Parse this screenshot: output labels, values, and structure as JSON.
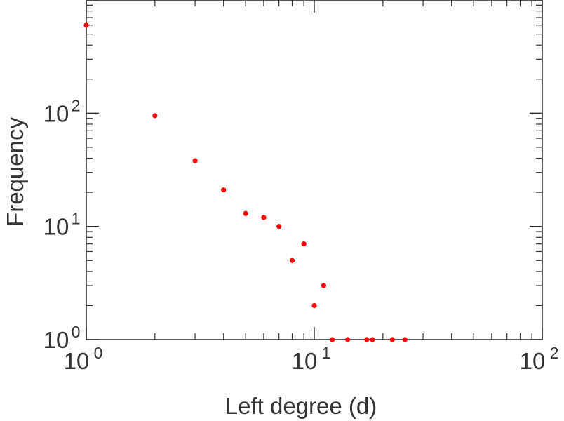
{
  "chart_data": {
    "type": "scatter",
    "title": "",
    "xlabel": "Left degree (d)",
    "ylabel": "Frequency",
    "xscale": "log",
    "yscale": "log",
    "xlim": [
      1,
      100
    ],
    "ylim": [
      1,
      1000
    ],
    "grid": false,
    "legend": "none",
    "marker_color": "#ff0000",
    "axis_color": "#333333",
    "x_ticks": [
      {
        "value": 1,
        "base": "10",
        "exp": "0"
      },
      {
        "value": 10,
        "base": "10",
        "exp": "1"
      },
      {
        "value": 100,
        "base": "10",
        "exp": "2"
      }
    ],
    "y_ticks": [
      {
        "value": 1,
        "base": "10",
        "exp": "0"
      },
      {
        "value": 10,
        "base": "10",
        "exp": "1"
      },
      {
        "value": 100,
        "base": "10",
        "exp": "2"
      }
    ],
    "x": [
      1,
      2,
      3,
      4,
      5,
      6,
      7,
      8,
      9,
      10,
      11,
      12,
      14,
      17,
      18,
      22,
      25
    ],
    "y": [
      600,
      95,
      38,
      21,
      13,
      12,
      10,
      5,
      7,
      2,
      3,
      1,
      1,
      1,
      1,
      1,
      1
    ]
  }
}
